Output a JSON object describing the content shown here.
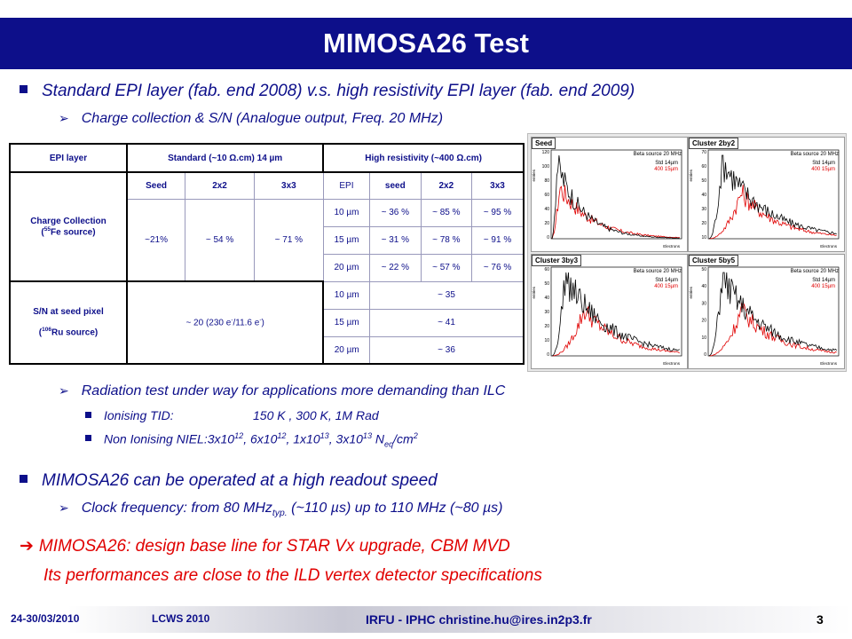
{
  "title": "MIMOSA26 Test",
  "bullet1": "Standard EPI layer (fab. end 2008) v.s. high resistivity EPI layer (fab. end 2009)",
  "bullet1_sub": "Charge collection & S/N (Analogue output, Freq. 20 MHz)",
  "table": {
    "h_epi": "EPI layer",
    "h_std": "Standard (~10 Ω.cm) 14 µm",
    "h_high": "High resistivity (~400 Ω.cm)",
    "cc_label_a": "Charge Collection",
    "cc_label_b": "(",
    "cc_label_sup": "55",
    "cc_label_c": "Fe source)",
    "std_cols": [
      "Seed",
      "2x2",
      "3x3"
    ],
    "std_vals": [
      "~21%",
      "~ 54 %",
      "~ 71 %"
    ],
    "high_cols": [
      "EPI",
      "seed",
      "2x2",
      "3x3"
    ],
    "high_rows": [
      [
        "10 µm",
        "~ 36 %",
        "~ 85 %",
        "~ 95 %"
      ],
      [
        "15 µm",
        "~ 31 %",
        "~ 78 %",
        "~ 91 %"
      ],
      [
        "20 µm",
        "~ 22 %",
        "~ 57 %",
        "~ 76 %"
      ]
    ],
    "sn_label_a": "S/N at seed pixel",
    "sn_label_b": "(",
    "sn_label_sup": "106",
    "sn_label_c": "Ru source)",
    "sn_std_a": "~ 20 (230 e",
    "sn_std_sup1": "-",
    "sn_std_b": "/11.6 e",
    "sn_std_sup2": "-",
    "sn_std_c": ")",
    "sn_rows": [
      [
        "10 µm",
        "~ 35"
      ],
      [
        "15 µm",
        "~ 41"
      ],
      [
        "20 µm",
        "~ 36"
      ]
    ]
  },
  "plots": {
    "subtitle": "Beta source 20 MHz",
    "legend_std": "Std 14µm",
    "legend_high": "400 15µm",
    "xlabel": "Electrons",
    "ylabel": "entries",
    "panels": [
      {
        "name": "Seed",
        "ticks": [
          "120",
          "100",
          "80",
          "60",
          "40",
          "20",
          "0"
        ]
      },
      {
        "name": "Cluster 2by2",
        "ticks": [
          "70",
          "60",
          "50",
          "40",
          "30",
          "20",
          "10"
        ]
      },
      {
        "name": "Cluster 3by3",
        "ticks": [
          "60",
          "50",
          "40",
          "30",
          "20",
          "10",
          "0"
        ]
      },
      {
        "name": "Cluster 5by5",
        "ticks": [
          "50",
          "40",
          "30",
          "20",
          "10",
          "0"
        ]
      }
    ]
  },
  "bullet2": "Radiation test under way for applications more demanding than ILC",
  "tid_label": "Ionising TID:",
  "tid_value": "150 K , 300 K, 1M Rad",
  "niel_label": "Non Ionising NIEL:",
  "niel_parts": [
    "3x10",
    "12",
    ", 6x10",
    "12",
    ", 1x10",
    "13",
    ", 3x10",
    "13",
    " N",
    "eq",
    "/cm",
    "2"
  ],
  "bullet3": "MIMOSA26 can be operated at a high readout speed",
  "clock_a": "Clock frequency: from 80 MHz",
  "clock_sub": "typ.",
  "clock_b": " (~110 µs) up to 110 MHz (~80 µs)",
  "conclusion1": "MIMOSA26: design base line for STAR Vx upgrade, CBM MVD",
  "conclusion2": "Its performances are close to the ILD vertex detector specifications",
  "footer": {
    "date": "24-30/03/2010",
    "event": "LCWS 2010",
    "author": "IRFU - IPHC   christine.hu@ires.in2p3.fr",
    "page": "3"
  },
  "colors": {
    "navy": "#0d0f8a",
    "red": "#e00000"
  }
}
